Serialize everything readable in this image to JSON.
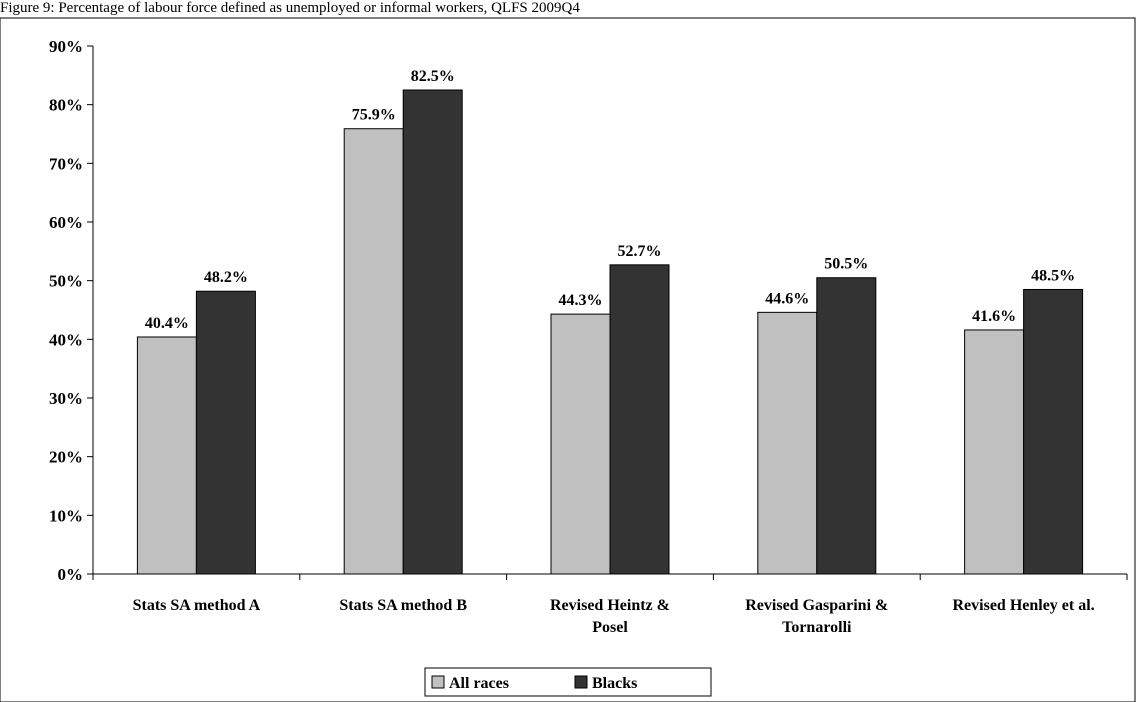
{
  "figure_title": "Figure 9: Percentage of labour force defined as unemployed or informal workers, QLFS 2009Q4",
  "colors": {
    "all_races": "#c0c0c0",
    "blacks": "#333333",
    "axis": "#000000",
    "frame": "#000000"
  },
  "chart_data": {
    "type": "bar",
    "title": "",
    "xlabel": "",
    "ylabel": "",
    "ylim": [
      0,
      90
    ],
    "yticks": [
      0,
      10,
      20,
      30,
      40,
      50,
      60,
      70,
      80,
      90
    ],
    "tick_suffix": "%",
    "grid": false,
    "legend_position": "bottom",
    "categories": [
      [
        "Stats SA method A"
      ],
      [
        "Stats SA method B"
      ],
      [
        "Revised Heintz &",
        "Posel"
      ],
      [
        "Revised Gasparini &",
        "Tornarolli"
      ],
      [
        "Revised Henley et al."
      ]
    ],
    "series": [
      {
        "name": "All races",
        "values": [
          40.4,
          75.9,
          44.3,
          44.6,
          41.6
        ],
        "labels": [
          "40.4%",
          "75.9%",
          "44.3%",
          "44.6%",
          "41.6%"
        ]
      },
      {
        "name": "Blacks",
        "values": [
          48.2,
          82.5,
          52.7,
          50.5,
          48.5
        ],
        "labels": [
          "48.2%",
          "82.5%",
          "52.7%",
          "50.5%",
          "48.5%"
        ]
      }
    ]
  }
}
